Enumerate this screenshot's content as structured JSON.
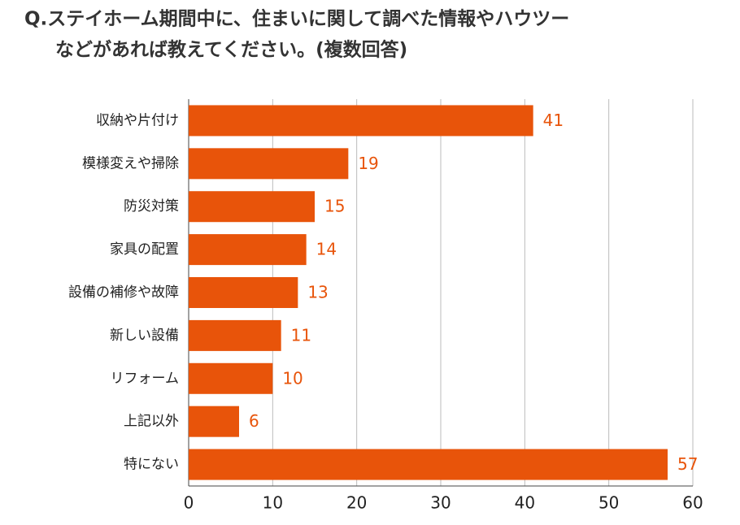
{
  "chart_data": {
    "type": "barh",
    "title": [
      "Q.ステイホーム期間中に、住まいに関して調べた情報やハウツー",
      "などがあれば教えてください。(複数回答)"
    ],
    "categories": [
      "収納や片付け",
      "模様変えや掃除",
      "防災対策",
      "家具の配置",
      "設備の補修や故障",
      "新しい設備",
      "リフォーム",
      "上記以外",
      "特にない"
    ],
    "values": [
      41,
      19,
      15,
      14,
      13,
      11,
      10,
      6,
      57
    ],
    "color": "#e8540a",
    "xlim": [
      0,
      60
    ],
    "xticks": [
      0,
      10,
      20,
      30,
      40,
      50,
      60
    ],
    "grid": true
  }
}
